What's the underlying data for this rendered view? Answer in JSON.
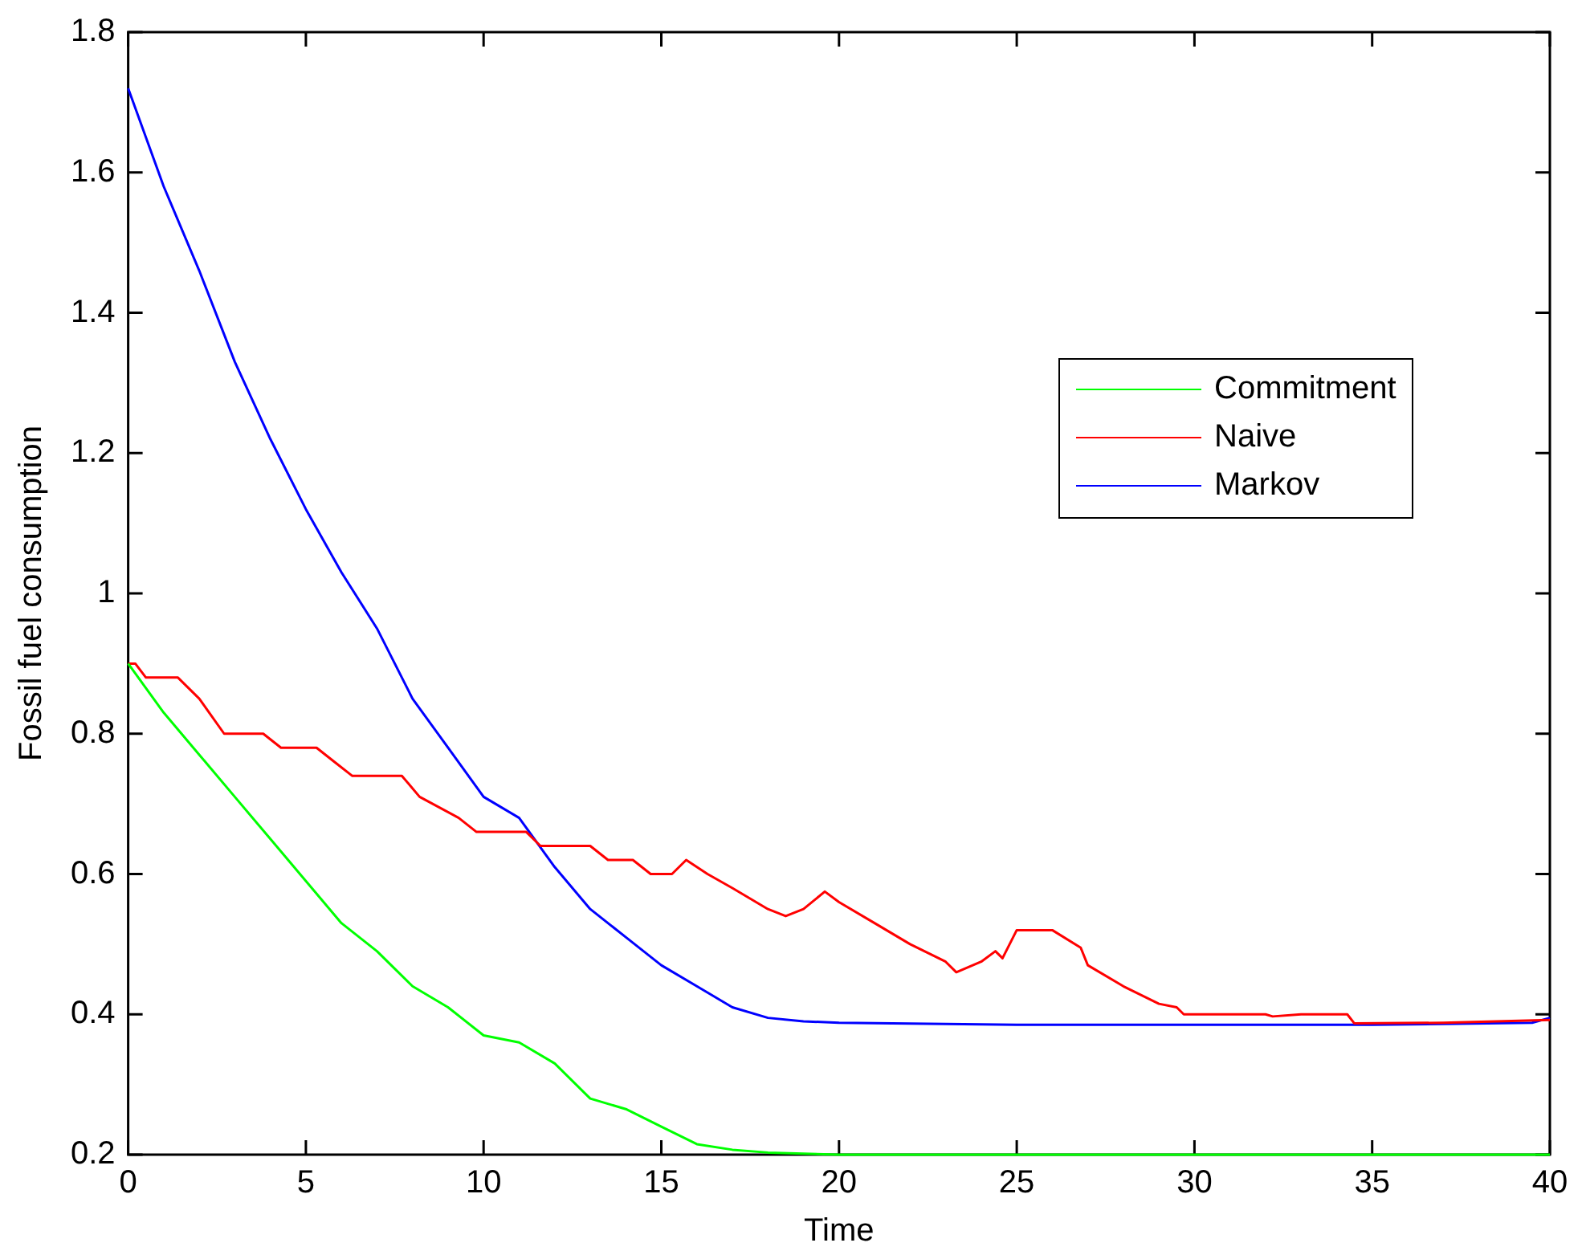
{
  "chart_data": {
    "type": "line",
    "xlabel": "Time",
    "ylabel": "Fossil fuel consumption",
    "xlim": [
      0,
      40
    ],
    "xticks": [
      0,
      5,
      10,
      15,
      20,
      25,
      30,
      35,
      40
    ],
    "ylim": [
      0.2,
      1.8
    ],
    "yticks": [
      0.2,
      0.4,
      0.6,
      0.8,
      1,
      1.2,
      1.4,
      1.6,
      1.8
    ],
    "grid": false,
    "legend": "right",
    "marker": "none",
    "line_style": "solid",
    "series": [
      {
        "name": "Commitment",
        "color": "#00ff00",
        "x": [
          0,
          1,
          2,
          3,
          4,
          5,
          6,
          7,
          8,
          9,
          10,
          11,
          12,
          13,
          14,
          15,
          16,
          17,
          18,
          20,
          40
        ],
        "values": [
          0.9,
          0.83,
          0.77,
          0.71,
          0.65,
          0.59,
          0.53,
          0.49,
          0.44,
          0.41,
          0.37,
          0.36,
          0.33,
          0.28,
          0.265,
          0.24,
          0.215,
          0.207,
          0.203,
          0.2,
          0.2
        ]
      },
      {
        "name": "Naive",
        "color": "#ff0000",
        "x": [
          0,
          0.2,
          0.5,
          1.4,
          2,
          2.7,
          3.8,
          4.3,
          5.3,
          5.8,
          6.3,
          7.7,
          8.2,
          9.3,
          9.8,
          11.2,
          11.6,
          12.7,
          13,
          13.5,
          14.2,
          14.7,
          15.3,
          15.7,
          16,
          16.3,
          17,
          18,
          18.5,
          19,
          19.6,
          20,
          21,
          22,
          23,
          23.3,
          24,
          24.4,
          24.6,
          25,
          26,
          26.8,
          27,
          28,
          29,
          29.5,
          29.7,
          32,
          32.2,
          33,
          34.3,
          34.5,
          37,
          40
        ],
        "values": [
          0.9,
          0.9,
          0.88,
          0.88,
          0.85,
          0.8,
          0.8,
          0.78,
          0.78,
          0.76,
          0.74,
          0.74,
          0.71,
          0.68,
          0.66,
          0.66,
          0.64,
          0.64,
          0.64,
          0.62,
          0.62,
          0.6,
          0.6,
          0.62,
          0.61,
          0.6,
          0.58,
          0.55,
          0.54,
          0.55,
          0.575,
          0.56,
          0.53,
          0.5,
          0.475,
          0.46,
          0.475,
          0.49,
          0.48,
          0.52,
          0.52,
          0.495,
          0.47,
          0.44,
          0.415,
          0.41,
          0.4,
          0.4,
          0.397,
          0.4,
          0.4,
          0.387,
          0.388,
          0.392
        ]
      },
      {
        "name": "Markov",
        "color": "#0000ff",
        "x": [
          0,
          1,
          2,
          3,
          4,
          5,
          6,
          7,
          8,
          9,
          10,
          11,
          12,
          13,
          14,
          15,
          16,
          17,
          18,
          19,
          20,
          25,
          30,
          35,
          39.5,
          40
        ],
        "values": [
          1.72,
          1.58,
          1.46,
          1.33,
          1.22,
          1.12,
          1.03,
          0.95,
          0.85,
          0.78,
          0.71,
          0.68,
          0.61,
          0.55,
          0.51,
          0.47,
          0.44,
          0.41,
          0.395,
          0.39,
          0.388,
          0.385,
          0.385,
          0.385,
          0.388,
          0.395
        ]
      }
    ]
  }
}
